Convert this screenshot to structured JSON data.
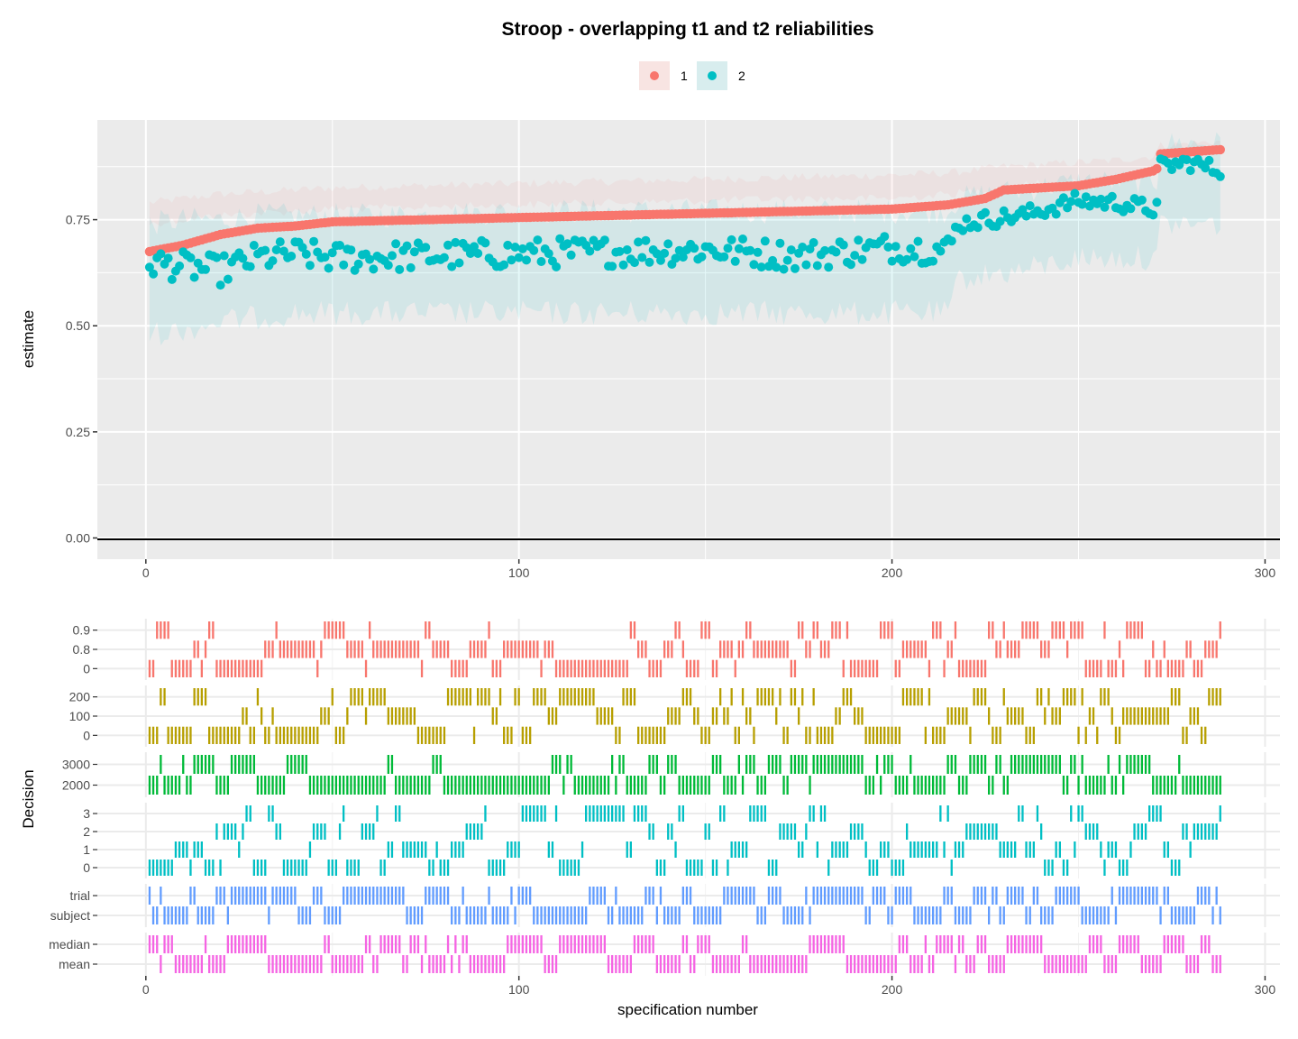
{
  "chart_data": [
    {
      "type": "scatter",
      "title": "Stroop - overlapping t1 and t2 reliabilities",
      "xlabel": "",
      "ylabel": "estimate",
      "xlim": [
        -13,
        304
      ],
      "ylim": [
        -0.05,
        0.985
      ],
      "x_ticks": [
        0,
        100,
        200,
        300
      ],
      "y_ticks": [
        0.0,
        0.25,
        0.5,
        0.75
      ],
      "y_tick_labels": [
        "0.00",
        "0.25",
        "0.50",
        "0.75"
      ],
      "grid": true,
      "legend_position": "top",
      "hline": 0,
      "n_specifications": 288,
      "series": [
        {
          "name": "1",
          "color": "#F8766D",
          "x": [
            1,
            10,
            20,
            30,
            40,
            50,
            75,
            100,
            125,
            150,
            175,
            200,
            215,
            225,
            230,
            250,
            260,
            270,
            271,
            272,
            280,
            288
          ],
          "y": [
            0.675,
            0.69,
            0.715,
            0.73,
            0.735,
            0.745,
            0.75,
            0.755,
            0.76,
            0.765,
            0.77,
            0.775,
            0.785,
            0.8,
            0.82,
            0.83,
            0.845,
            0.865,
            0.87,
            0.905,
            0.91,
            0.915
          ],
          "ci_lower": [
            0.74,
            0.75,
            0.76,
            0.765,
            0.77,
            0.775,
            0.78,
            0.785,
            0.79,
            0.795,
            0.8,
            0.8,
            0.81,
            0.82,
            0.83,
            0.84,
            0.845,
            0.855,
            0.86,
            0.9,
            0.905,
            0.91
          ],
          "ci_upper": [
            0.79,
            0.8,
            0.81,
            0.815,
            0.82,
            0.825,
            0.83,
            0.835,
            0.84,
            0.845,
            0.85,
            0.855,
            0.86,
            0.87,
            0.875,
            0.885,
            0.89,
            0.9,
            0.91,
            0.925,
            0.93,
            0.935
          ]
        },
        {
          "name": "2",
          "color": "#00BFC4",
          "x": [
            1,
            10,
            20,
            30,
            40,
            50,
            75,
            100,
            125,
            150,
            175,
            200,
            215,
            218,
            225,
            235,
            250,
            260,
            270,
            271,
            272,
            280,
            288
          ],
          "y": [
            0.65,
            0.64,
            0.63,
            0.66,
            0.67,
            0.66,
            0.665,
            0.67,
            0.675,
            0.68,
            0.665,
            0.685,
            0.68,
            0.74,
            0.75,
            0.76,
            0.795,
            0.79,
            0.775,
            0.78,
            0.875,
            0.885,
            0.865
          ],
          "ci_lower": [
            0.48,
            0.49,
            0.51,
            0.52,
            0.53,
            0.53,
            0.53,
            0.53,
            0.53,
            0.53,
            0.53,
            0.53,
            0.53,
            0.61,
            0.62,
            0.63,
            0.66,
            0.66,
            0.66,
            0.66,
            0.74,
            0.74,
            0.74
          ],
          "ci_upper": [
            0.74,
            0.75,
            0.75,
            0.76,
            0.76,
            0.76,
            0.76,
            0.77,
            0.77,
            0.77,
            0.77,
            0.77,
            0.77,
            0.8,
            0.81,
            0.82,
            0.84,
            0.84,
            0.84,
            0.84,
            0.93,
            0.93,
            0.93
          ]
        }
      ]
    },
    {
      "type": "heatmap",
      "title": "",
      "xlabel": "specification number",
      "ylabel": "Decision",
      "xlim": [
        -13,
        304
      ],
      "x_ticks": [
        0,
        100,
        200,
        300
      ],
      "grid": true,
      "n_specifications": 288,
      "panels": [
        {
          "color": "#F8766D",
          "levels": [
            "0",
            "0.8",
            "0.9"
          ],
          "row_weights": [
            0.36,
            0.34,
            0.3
          ]
        },
        {
          "color": "#B79F00",
          "levels": [
            "0",
            "100",
            "200"
          ],
          "row_weights": [
            0.34,
            0.33,
            0.33
          ]
        },
        {
          "color": "#00BA38",
          "levels": [
            "2000",
            "3000"
          ],
          "row_weights": [
            0.6,
            0.4
          ]
        },
        {
          "color": "#00BFC4",
          "levels": [
            "0",
            "1",
            "2",
            "3"
          ],
          "row_weights": [
            0.28,
            0.38,
            0.18,
            0.16
          ]
        },
        {
          "color": "#619CFF",
          "levels": [
            "subject",
            "trial"
          ],
          "row_weights": [
            0.5,
            0.5
          ]
        },
        {
          "color": "#F564E3",
          "levels": [
            "mean",
            "median"
          ],
          "row_weights": [
            0.5,
            0.5
          ]
        }
      ]
    }
  ]
}
